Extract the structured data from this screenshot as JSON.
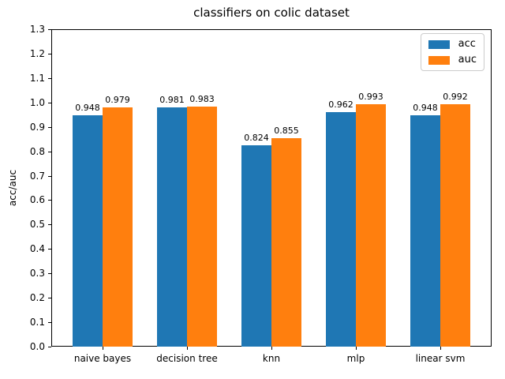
{
  "figure": {
    "title": "classifiers on colic dataset",
    "ylabel": "acc/auc"
  },
  "chart_data": {
    "type": "bar",
    "title": "classifiers on colic dataset",
    "xlabel": "",
    "ylabel": "acc/auc",
    "categories": [
      "naive bayes",
      "decision tree",
      "knn",
      "mlp",
      "linear svm"
    ],
    "series": [
      {
        "name": "acc",
        "color": "#1f77b4",
        "values": [
          0.948,
          0.981,
          0.824,
          0.962,
          0.948
        ],
        "labels": [
          "0.948",
          "0.981",
          "0.824",
          "0.962",
          "0.948"
        ]
      },
      {
        "name": "auc",
        "color": "#ff7f0e",
        "values": [
          0.979,
          0.983,
          0.855,
          0.993,
          0.992
        ],
        "labels": [
          "0.979",
          "0.983",
          "0.855",
          "0.993",
          "0.992"
        ]
      }
    ],
    "ylim": [
      0,
      1.3
    ],
    "yticks": [
      "0.0",
      "0.1",
      "0.2",
      "0.3",
      "0.4",
      "0.5",
      "0.6",
      "0.7",
      "0.8",
      "0.9",
      "1.0",
      "1.1",
      "1.2",
      "1.3"
    ],
    "bar_value_labels": true,
    "legend": {
      "position": "upper right",
      "entries": [
        {
          "label": "acc",
          "color": "#1f77b4"
        },
        {
          "label": "auc",
          "color": "#ff7f0e"
        }
      ]
    },
    "grid": false
  }
}
